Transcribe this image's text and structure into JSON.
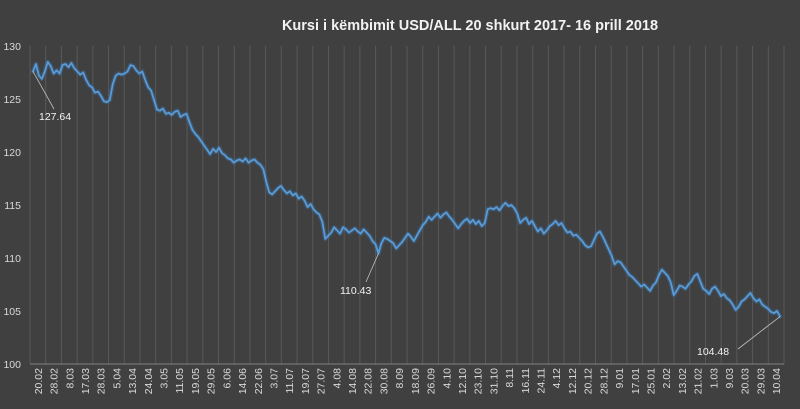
{
  "chart_data": {
    "type": "line",
    "title": "Kursi i këmbimit USD/ALL  20 shkurt 2017-  16 prill 2018",
    "xlabel": "",
    "ylabel": "",
    "ylim": [
      100,
      130
    ],
    "yticks": [
      100,
      105,
      110,
      115,
      120,
      125,
      130
    ],
    "grid": {
      "vertical": true,
      "horizontal": false
    },
    "legend": "none",
    "colors": {
      "line": "#5b9bd5",
      "background": "#404040",
      "grid": "#595959",
      "text": "#d9d9d9",
      "annotation": "#bfbfbf"
    },
    "x_ticks": [
      "20.02",
      "28.02",
      "8.03",
      "17.03",
      "28.03",
      "5.04",
      "13.04",
      "24.04",
      "3.05",
      "11.05",
      "19.05",
      "29.05",
      "6.06",
      "14.06",
      "22.06",
      "3.07",
      "11.07",
      "19.07",
      "27.07",
      "4.08",
      "14.08",
      "22.08",
      "30.08",
      "8.09",
      "18.09",
      "26.09",
      "4.10",
      "12.10",
      "23.10",
      "31.10",
      "8.11",
      "16.11",
      "24.11",
      "4.12",
      "12.12",
      "20.12",
      "28.12",
      "9.01",
      "17.01",
      "25.01",
      "2.02",
      "13.02",
      "21.02",
      "1.03",
      "9.03",
      "20.03",
      "29.03",
      "10.04"
    ],
    "y": [
      127.6,
      128.3,
      127.2,
      126.9,
      127.6,
      128.5,
      128.1,
      127.4,
      127.7,
      127.4,
      128.2,
      128.3,
      128.0,
      128.4,
      127.9,
      127.6,
      127.3,
      127.5,
      126.8,
      126.3,
      126.1,
      125.6,
      125.7,
      125.3,
      124.8,
      124.7,
      124.9,
      126.4,
      127.2,
      127.4,
      127.3,
      127.4,
      127.6,
      128.2,
      128.1,
      127.7,
      127.4,
      127.6,
      126.8,
      126.1,
      125.8,
      124.9,
      124.0,
      123.9,
      124.1,
      123.6,
      123.7,
      123.5,
      123.8,
      123.9,
      123.3,
      123.5,
      123.6,
      122.8,
      122.1,
      121.7,
      121.4,
      121.0,
      120.6,
      120.2,
      119.8,
      120.3,
      120.0,
      120.4,
      119.9,
      119.7,
      119.4,
      119.3,
      119.0,
      119.2,
      119.3,
      119.1,
      119.4,
      119.0,
      119.2,
      119.3,
      119.0,
      118.8,
      118.4,
      117.2,
      116.2,
      116.0,
      116.3,
      116.6,
      116.8,
      116.4,
      116.1,
      116.3,
      115.9,
      116.1,
      115.6,
      115.8,
      115.4,
      114.8,
      115.1,
      114.6,
      114.3,
      114.1,
      113.4,
      111.8,
      112.1,
      112.4,
      112.9,
      112.6,
      112.3,
      112.9,
      112.7,
      112.4,
      112.6,
      112.8,
      112.5,
      112.3,
      112.7,
      112.4,
      112.1,
      111.6,
      111.3,
      110.43,
      111.4,
      111.9,
      111.8,
      111.6,
      111.4,
      110.9,
      111.2,
      111.5,
      111.9,
      112.3,
      112.0,
      111.6,
      112.1,
      112.6,
      113.1,
      113.4,
      113.9,
      113.6,
      113.9,
      114.2,
      113.8,
      114.1,
      114.3,
      113.9,
      113.6,
      113.2,
      112.8,
      113.2,
      113.5,
      113.7,
      113.3,
      113.6,
      113.2,
      113.5,
      113.0,
      113.3,
      114.6,
      114.7,
      114.6,
      114.8,
      114.5,
      114.9,
      115.2,
      114.9,
      115.0,
      114.7,
      114.2,
      113.3,
      113.6,
      113.8,
      113.2,
      113.5,
      113.0,
      112.5,
      112.8,
      112.3,
      112.6,
      113.0,
      113.2,
      113.5,
      113.1,
      113.3,
      112.8,
      112.4,
      112.5,
      112.1,
      112.2,
      111.9,
      111.6,
      111.2,
      111.0,
      111.1,
      111.7,
      112.3,
      112.5,
      112.0,
      111.4,
      110.8,
      110.2,
      109.4,
      109.7,
      109.6,
      109.2,
      108.8,
      108.4,
      108.2,
      107.9,
      107.6,
      107.3,
      107.5,
      107.2,
      106.9,
      107.4,
      107.7,
      108.4,
      108.9,
      108.6,
      108.3,
      107.7,
      106.5,
      106.9,
      107.4,
      107.3,
      107.1,
      107.5,
      107.8,
      108.3,
      108.5,
      107.8,
      107.1,
      106.9,
      106.6,
      107.1,
      107.3,
      106.9,
      106.4,
      106.6,
      106.2,
      106.0,
      105.6,
      105.1,
      105.4,
      105.9,
      106.1,
      106.4,
      106.7,
      106.2,
      105.9,
      106.1,
      105.6,
      105.4,
      105.2,
      104.9,
      104.8,
      105.0,
      104.48
    ],
    "annotations": [
      {
        "text": "127.64",
        "value": 127.64
      },
      {
        "text": "110.43",
        "value": 110.43
      },
      {
        "text": "104.48",
        "value": 104.48
      }
    ]
  }
}
